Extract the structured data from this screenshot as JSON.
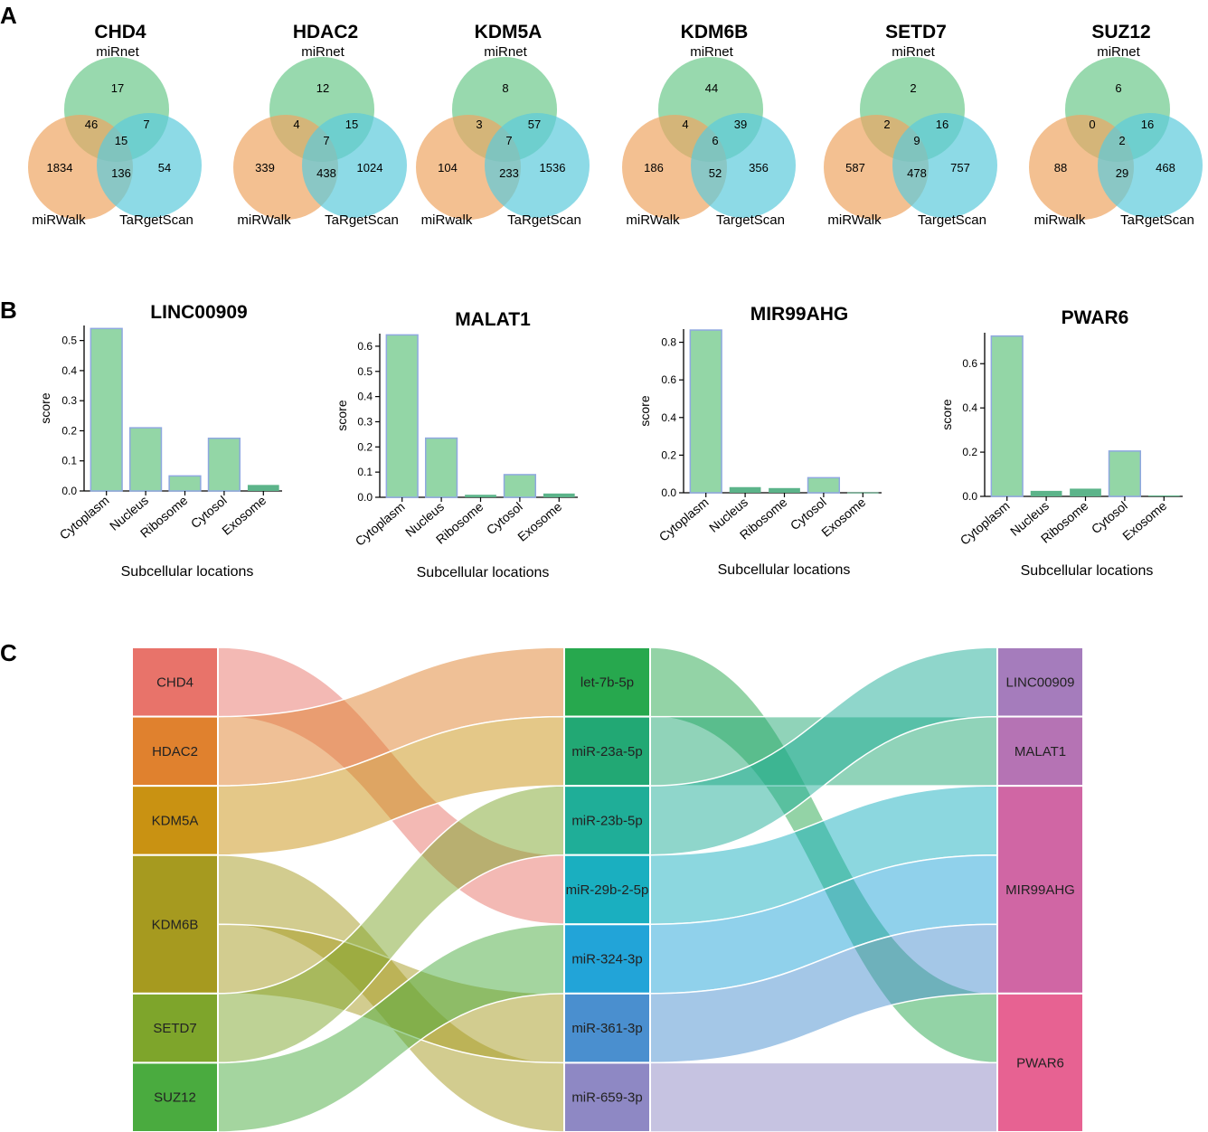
{
  "panels": {
    "a": "A",
    "b": "B",
    "c": "C"
  },
  "chart_data": [
    {
      "type": "venn",
      "panel": "A",
      "colors": {
        "top": "#7ed09a",
        "left": "#eea562",
        "right": "#5ccbdb"
      },
      "diagrams": [
        {
          "title": "CHD4",
          "top": "miRnet",
          "left": "miRWalk",
          "right": "TaRgetScan",
          "regions": {
            "top_only": 17,
            "left_only": 1834,
            "right_only": 54,
            "top_left": 46,
            "top_right": 7,
            "left_right": 136,
            "all": 15
          }
        },
        {
          "title": "HDAC2",
          "top": "miRnet",
          "left": "miRWalk",
          "right": "TaRgetScan",
          "regions": {
            "top_only": 12,
            "left_only": 339,
            "right_only": 1024,
            "top_left": 4,
            "top_right": 15,
            "left_right": 438,
            "all": 7
          }
        },
        {
          "title": "KDM5A",
          "top": "miRnet",
          "left": "miRwalk",
          "right": "TaRgetScan",
          "regions": {
            "top_only": 8,
            "left_only": 104,
            "right_only": 1536,
            "top_left": 3,
            "top_right": 57,
            "left_right": 233,
            "all": 7
          }
        },
        {
          "title": "KDM6B",
          "top": "miRnet",
          "left": "miRWalk",
          "right": "TargetScan",
          "regions": {
            "top_only": 44,
            "left_only": 186,
            "right_only": 356,
            "top_left": 4,
            "top_right": 39,
            "left_right": 52,
            "all": 6
          }
        },
        {
          "title": "SETD7",
          "top": "miRnet",
          "left": "miRWalk",
          "right": "TargetScan",
          "regions": {
            "top_only": 2,
            "left_only": 587,
            "right_only": 757,
            "top_left": 2,
            "top_right": 16,
            "left_right": 478,
            "all": 9
          }
        },
        {
          "title": "SUZ12",
          "top": "miRnet",
          "left": "miRwalk",
          "right": "TaRgetScan",
          "regions": {
            "top_only": 6,
            "left_only": 88,
            "right_only": 468,
            "top_left": 0,
            "top_right": 16,
            "left_right": 29,
            "all": 2
          }
        }
      ]
    },
    {
      "type": "bar",
      "panel": "B",
      "categories": [
        "Cytoplasm",
        "Nucleus",
        "Ribosome",
        "Cytosol",
        "Exosome"
      ],
      "xlabel": "Subcellular locations",
      "ylabel": "score",
      "colors": {
        "light": "#93d6a6",
        "dark": "#5cb48a",
        "edge": "#8fa8e0"
      },
      "charts": [
        {
          "title": "LINC00909",
          "values": [
            0.54,
            0.21,
            0.05,
            0.175,
            0.02
          ],
          "ylim": [
            0,
            0.55
          ],
          "yticks": [
            "0.0",
            "0.1",
            "0.2",
            "0.3",
            "0.4",
            "0.5"
          ]
        },
        {
          "title": "MALAT1",
          "values": [
            0.645,
            0.235,
            0.01,
            0.09,
            0.015
          ],
          "ylim": [
            0,
            0.65
          ],
          "yticks": [
            "0.0",
            "0.1",
            "0.2",
            "0.3",
            "0.4",
            "0.5",
            "0.6"
          ]
        },
        {
          "title": "MIR99AHG",
          "values": [
            0.865,
            0.03,
            0.025,
            0.08,
            0.002
          ],
          "ylim": [
            0,
            0.87
          ],
          "yticks": [
            "0.0",
            "0.2",
            "0.4",
            "0.6",
            "0.8"
          ]
        },
        {
          "title": "PWAR6",
          "values": [
            0.725,
            0.025,
            0.035,
            0.205,
            0.004
          ],
          "ylim": [
            0,
            0.74
          ],
          "yticks": [
            "0.0",
            "0.2",
            "0.4",
            "0.6"
          ]
        }
      ]
    },
    {
      "type": "sankey",
      "panel": "C",
      "columns": [
        [
          {
            "name": "CHD4",
            "color": "#e8736a"
          },
          {
            "name": "HDAC2",
            "color": "#e0812e"
          },
          {
            "name": "KDM5A",
            "color": "#c99212"
          },
          {
            "name": "KDM6B",
            "color": "#a69a1f"
          },
          {
            "name": "SETD7",
            "color": "#7ea52b"
          },
          {
            "name": "SUZ12",
            "color": "#4aab3f"
          }
        ],
        [
          {
            "name": "let-7b-5p",
            "color": "#27a84e"
          },
          {
            "name": "miR-23a-5p",
            "color": "#22a874"
          },
          {
            "name": "miR-23b-5p",
            "color": "#1fae98"
          },
          {
            "name": "miR-29b-2-5p",
            "color": "#1aafc0"
          },
          {
            "name": "miR-324-3p",
            "color": "#22a4d8"
          },
          {
            "name": "miR-361-3p",
            "color": "#4a8fcf"
          },
          {
            "name": "miR-659-3p",
            "color": "#8e88c4"
          }
        ],
        [
          {
            "name": "LINC00909",
            "color": "#a57cbc"
          },
          {
            "name": "MALAT1",
            "color": "#b573b4"
          },
          {
            "name": "MIR99AHG",
            "color": "#d066a4"
          },
          {
            "name": "PWAR6",
            "color": "#e76292"
          }
        ]
      ],
      "links": [
        {
          "from": [
            0,
            0
          ],
          "to": [
            1,
            3
          ],
          "value": 1
        },
        {
          "from": [
            0,
            1
          ],
          "to": [
            1,
            0
          ],
          "value": 1
        },
        {
          "from": [
            0,
            2
          ],
          "to": [
            1,
            1
          ],
          "value": 1
        },
        {
          "from": [
            0,
            3
          ],
          "to": [
            1,
            6
          ],
          "value": 1
        },
        {
          "from": [
            0,
            3
          ],
          "to": [
            1,
            5
          ],
          "value": 1
        },
        {
          "from": [
            0,
            4
          ],
          "to": [
            1,
            2
          ],
          "value": 1
        },
        {
          "from": [
            0,
            5
          ],
          "to": [
            1,
            4
          ],
          "value": 1
        },
        {
          "from": [
            1,
            0
          ],
          "to": [
            2,
            3
          ],
          "value": 1
        },
        {
          "from": [
            1,
            1
          ],
          "to": [
            2,
            1
          ],
          "value": 1
        },
        {
          "from": [
            1,
            2
          ],
          "to": [
            2,
            0
          ],
          "value": 1
        },
        {
          "from": [
            1,
            3
          ],
          "to": [
            2,
            2
          ],
          "value": 1
        },
        {
          "from": [
            1,
            4
          ],
          "to": [
            2,
            2
          ],
          "value": 1
        },
        {
          "from": [
            1,
            5
          ],
          "to": [
            2,
            2
          ],
          "value": 1
        },
        {
          "from": [
            1,
            6
          ],
          "to": [
            2,
            3
          ],
          "value": 1
        }
      ]
    }
  ]
}
